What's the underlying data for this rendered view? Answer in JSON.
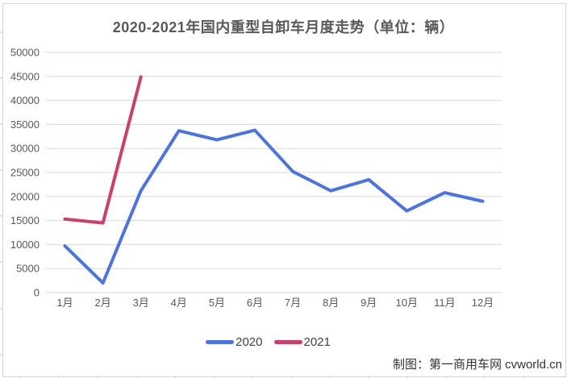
{
  "page": {
    "credit": "制图：第一商用车网 cvworld.cn"
  },
  "chart_data": {
    "type": "line",
    "title": "2020-2021年国内重型自卸车月度走势（单位：辆）",
    "categories": [
      "1月",
      "2月",
      "3月",
      "4月",
      "5月",
      "6月",
      "7月",
      "8月",
      "9月",
      "10月",
      "11月",
      "12月"
    ],
    "series": [
      {
        "name": "2020",
        "color": "#4a73e8",
        "values": [
          9700,
          2000,
          21200,
          33700,
          31800,
          33800,
          25200,
          21200,
          23500,
          17000,
          20800,
          19000
        ]
      },
      {
        "name": "2021",
        "color": "#cf3e6b",
        "values": [
          15300,
          14500,
          44900
        ]
      }
    ],
    "xlabel": "",
    "ylabel": "",
    "ylim": [
      0,
      50000
    ],
    "ytick_step": 5000,
    "grid": true,
    "legend_position": "bottom"
  },
  "colors": {
    "gridline": "#d9d9d9",
    "edge_stub": "#c9c9c9",
    "axis_text": "#595959"
  }
}
